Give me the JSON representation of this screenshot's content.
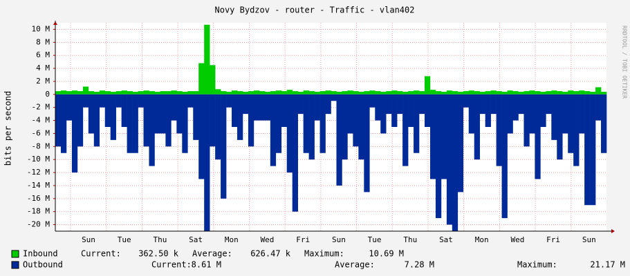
{
  "chart_data": {
    "type": "bar",
    "title": "Novy Bydzov - router - Traffic - vlan402",
    "y_label": "bits per second",
    "side_note": "RRDTOOL / TOBI OETIKER",
    "x_labels": [
      "Sun",
      "Tue",
      "Thu",
      "Sat",
      "Mon",
      "Wed",
      "Fri",
      "Sun",
      "Tue",
      "Thu",
      "Sat",
      "Mon",
      "Wed",
      "Fri",
      "Sun"
    ],
    "ylim": [
      -21000000,
      11000000
    ],
    "yticks": [
      {
        "value": 10000000,
        "label": "10 M"
      },
      {
        "value": 8000000,
        "label": "8 M"
      },
      {
        "value": 6000000,
        "label": "6 M"
      },
      {
        "value": 4000000,
        "label": "4 M"
      },
      {
        "value": 2000000,
        "label": "2 M"
      },
      0,
      {
        "value": -2000000,
        "label": "-2 M"
      },
      {
        "value": -4000000,
        "label": "-4 M"
      },
      {
        "value": -6000000,
        "label": "-6 M"
      },
      {
        "value": -8000000,
        "label": "-8 M"
      },
      {
        "value": -10000000,
        "label": "-10 M"
      },
      {
        "value": -12000000,
        "label": "-12 M"
      },
      {
        "value": -14000000,
        "label": "-14 M"
      },
      {
        "value": -16000000,
        "label": "-16 M"
      },
      {
        "value": -18000000,
        "label": "-18 M"
      },
      {
        "value": -20000000,
        "label": "-20 M"
      }
    ],
    "grid": true,
    "series": [
      {
        "name": "Inbound",
        "color": "#00cc00",
        "stats": [
          {
            "label": "Current:",
            "value": "362.50 k"
          },
          {
            "label": "Average:",
            "value": "626.47 k"
          },
          {
            "label": "Maximum:",
            "value": "10.69 M"
          }
        ],
        "values": [
          500000,
          600000,
          500000,
          600000,
          500000,
          1200000,
          500000,
          400000,
          600000,
          500000,
          400000,
          500000,
          600000,
          500000,
          400000,
          500000,
          600000,
          500000,
          400000,
          500000,
          500000,
          600000,
          500000,
          400000,
          500000,
          500000,
          4800000,
          10700000,
          4500000,
          800000,
          500000,
          400000,
          600000,
          500000,
          400000,
          500000,
          600000,
          500000,
          400000,
          500000,
          600000,
          500000,
          700000,
          500000,
          400000,
          600000,
          500000,
          400000,
          500000,
          600000,
          500000,
          400000,
          500000,
          600000,
          500000,
          400000,
          500000,
          600000,
          500000,
          400000,
          500000,
          600000,
          500000,
          400000,
          500000,
          600000,
          500000,
          2800000,
          700000,
          500000,
          400000,
          600000,
          500000,
          400000,
          500000,
          600000,
          500000,
          400000,
          500000,
          600000,
          500000,
          400000,
          600000,
          500000,
          400000,
          500000,
          600000,
          500000,
          400000,
          500000,
          600000,
          500000,
          400000,
          600000,
          500000,
          600000,
          500000,
          400000,
          1100000,
          400000
        ]
      },
      {
        "name": "Outbound",
        "color": "#002a97",
        "stats": [
          {
            "label": "Current:",
            "value": "8.61 M"
          },
          {
            "label": "Average:",
            "value": "7.28 M"
          },
          {
            "label": "Maximum:",
            "value": "21.17 M"
          }
        ],
        "values": [
          -8000000,
          -9000000,
          -4000000,
          -12000000,
          -8000000,
          -2000000,
          -6000000,
          -8000000,
          -2000000,
          -5000000,
          -7000000,
          -2000000,
          -5000000,
          -9000000,
          -9000000,
          -2000000,
          -8000000,
          -11000000,
          -6000000,
          -6000000,
          -8000000,
          -4000000,
          -6000000,
          -9000000,
          -2000000,
          -7000000,
          -13000000,
          -21000000,
          -8000000,
          -10000000,
          -16000000,
          -2000000,
          -5000000,
          -7000000,
          -3000000,
          -8000000,
          -4000000,
          -4000000,
          -4000000,
          -11000000,
          -9000000,
          -5000000,
          -12000000,
          -18000000,
          -3000000,
          -9000000,
          -10000000,
          -4000000,
          -9000000,
          -3000000,
          -1000000,
          -14000000,
          -10000000,
          -6000000,
          -8000000,
          -10000000,
          -15000000,
          -2000000,
          -4000000,
          -6000000,
          -3000000,
          -5000000,
          -3000000,
          -11000000,
          -5000000,
          -9000000,
          -3000000,
          -5000000,
          -13000000,
          -19000000,
          -13000000,
          -20000000,
          -21000000,
          -15000000,
          -2000000,
          -6000000,
          -10000000,
          -3000000,
          -5000000,
          -3000000,
          -11000000,
          -19000000,
          -6000000,
          -4000000,
          -3000000,
          -8000000,
          -6000000,
          -13000000,
          -5000000,
          -3000000,
          -7000000,
          -10000000,
          -6000000,
          -9000000,
          -11000000,
          -6000000,
          -17000000,
          -17000000,
          -4000000,
          -9000000
        ]
      }
    ]
  }
}
